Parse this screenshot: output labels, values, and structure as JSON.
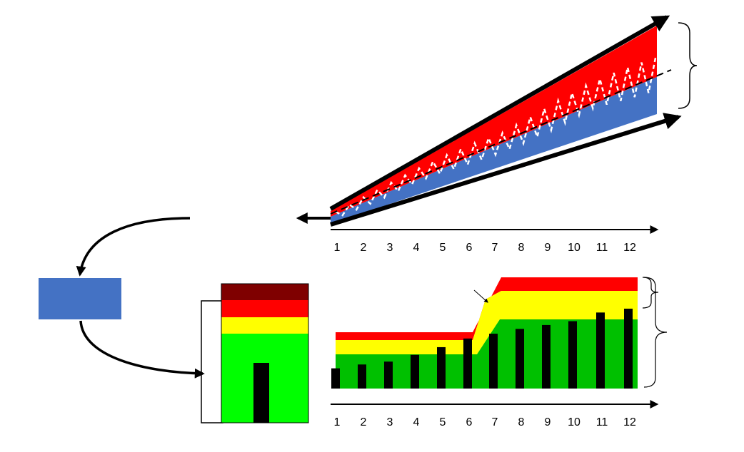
{
  "top_chart": {
    "x_ticks": [
      "1",
      "2",
      "3",
      "4",
      "5",
      "6",
      "7",
      "8",
      "9",
      "10",
      "11",
      "12"
    ],
    "colors": {
      "upper_band": "#ff0000",
      "lower_band": "#4472c4",
      "series_line": "#ffffff",
      "arrows": "#000000"
    }
  },
  "bottom_chart": {
    "x_ticks": [
      "1",
      "2",
      "3",
      "4",
      "5",
      "6",
      "7",
      "8",
      "9",
      "10",
      "11",
      "12"
    ],
    "bars": [
      0.21,
      0.25,
      0.28,
      0.35,
      0.43,
      0.52,
      0.57,
      0.62,
      0.66,
      0.7,
      0.79,
      0.83
    ],
    "step_after_index": 6,
    "colors": {
      "top_band": "#ff0000",
      "middle_band": "#ffff00",
      "base_band": "#00c000",
      "bars": "#000000"
    }
  },
  "stack_box": {
    "colors": {
      "dark": "#7f0000",
      "red": "#ff0000",
      "yellow": "#ffff00",
      "green": "#00ff00",
      "bar": "#000000"
    }
  },
  "blue_box": {
    "color": "#4472c4"
  }
}
